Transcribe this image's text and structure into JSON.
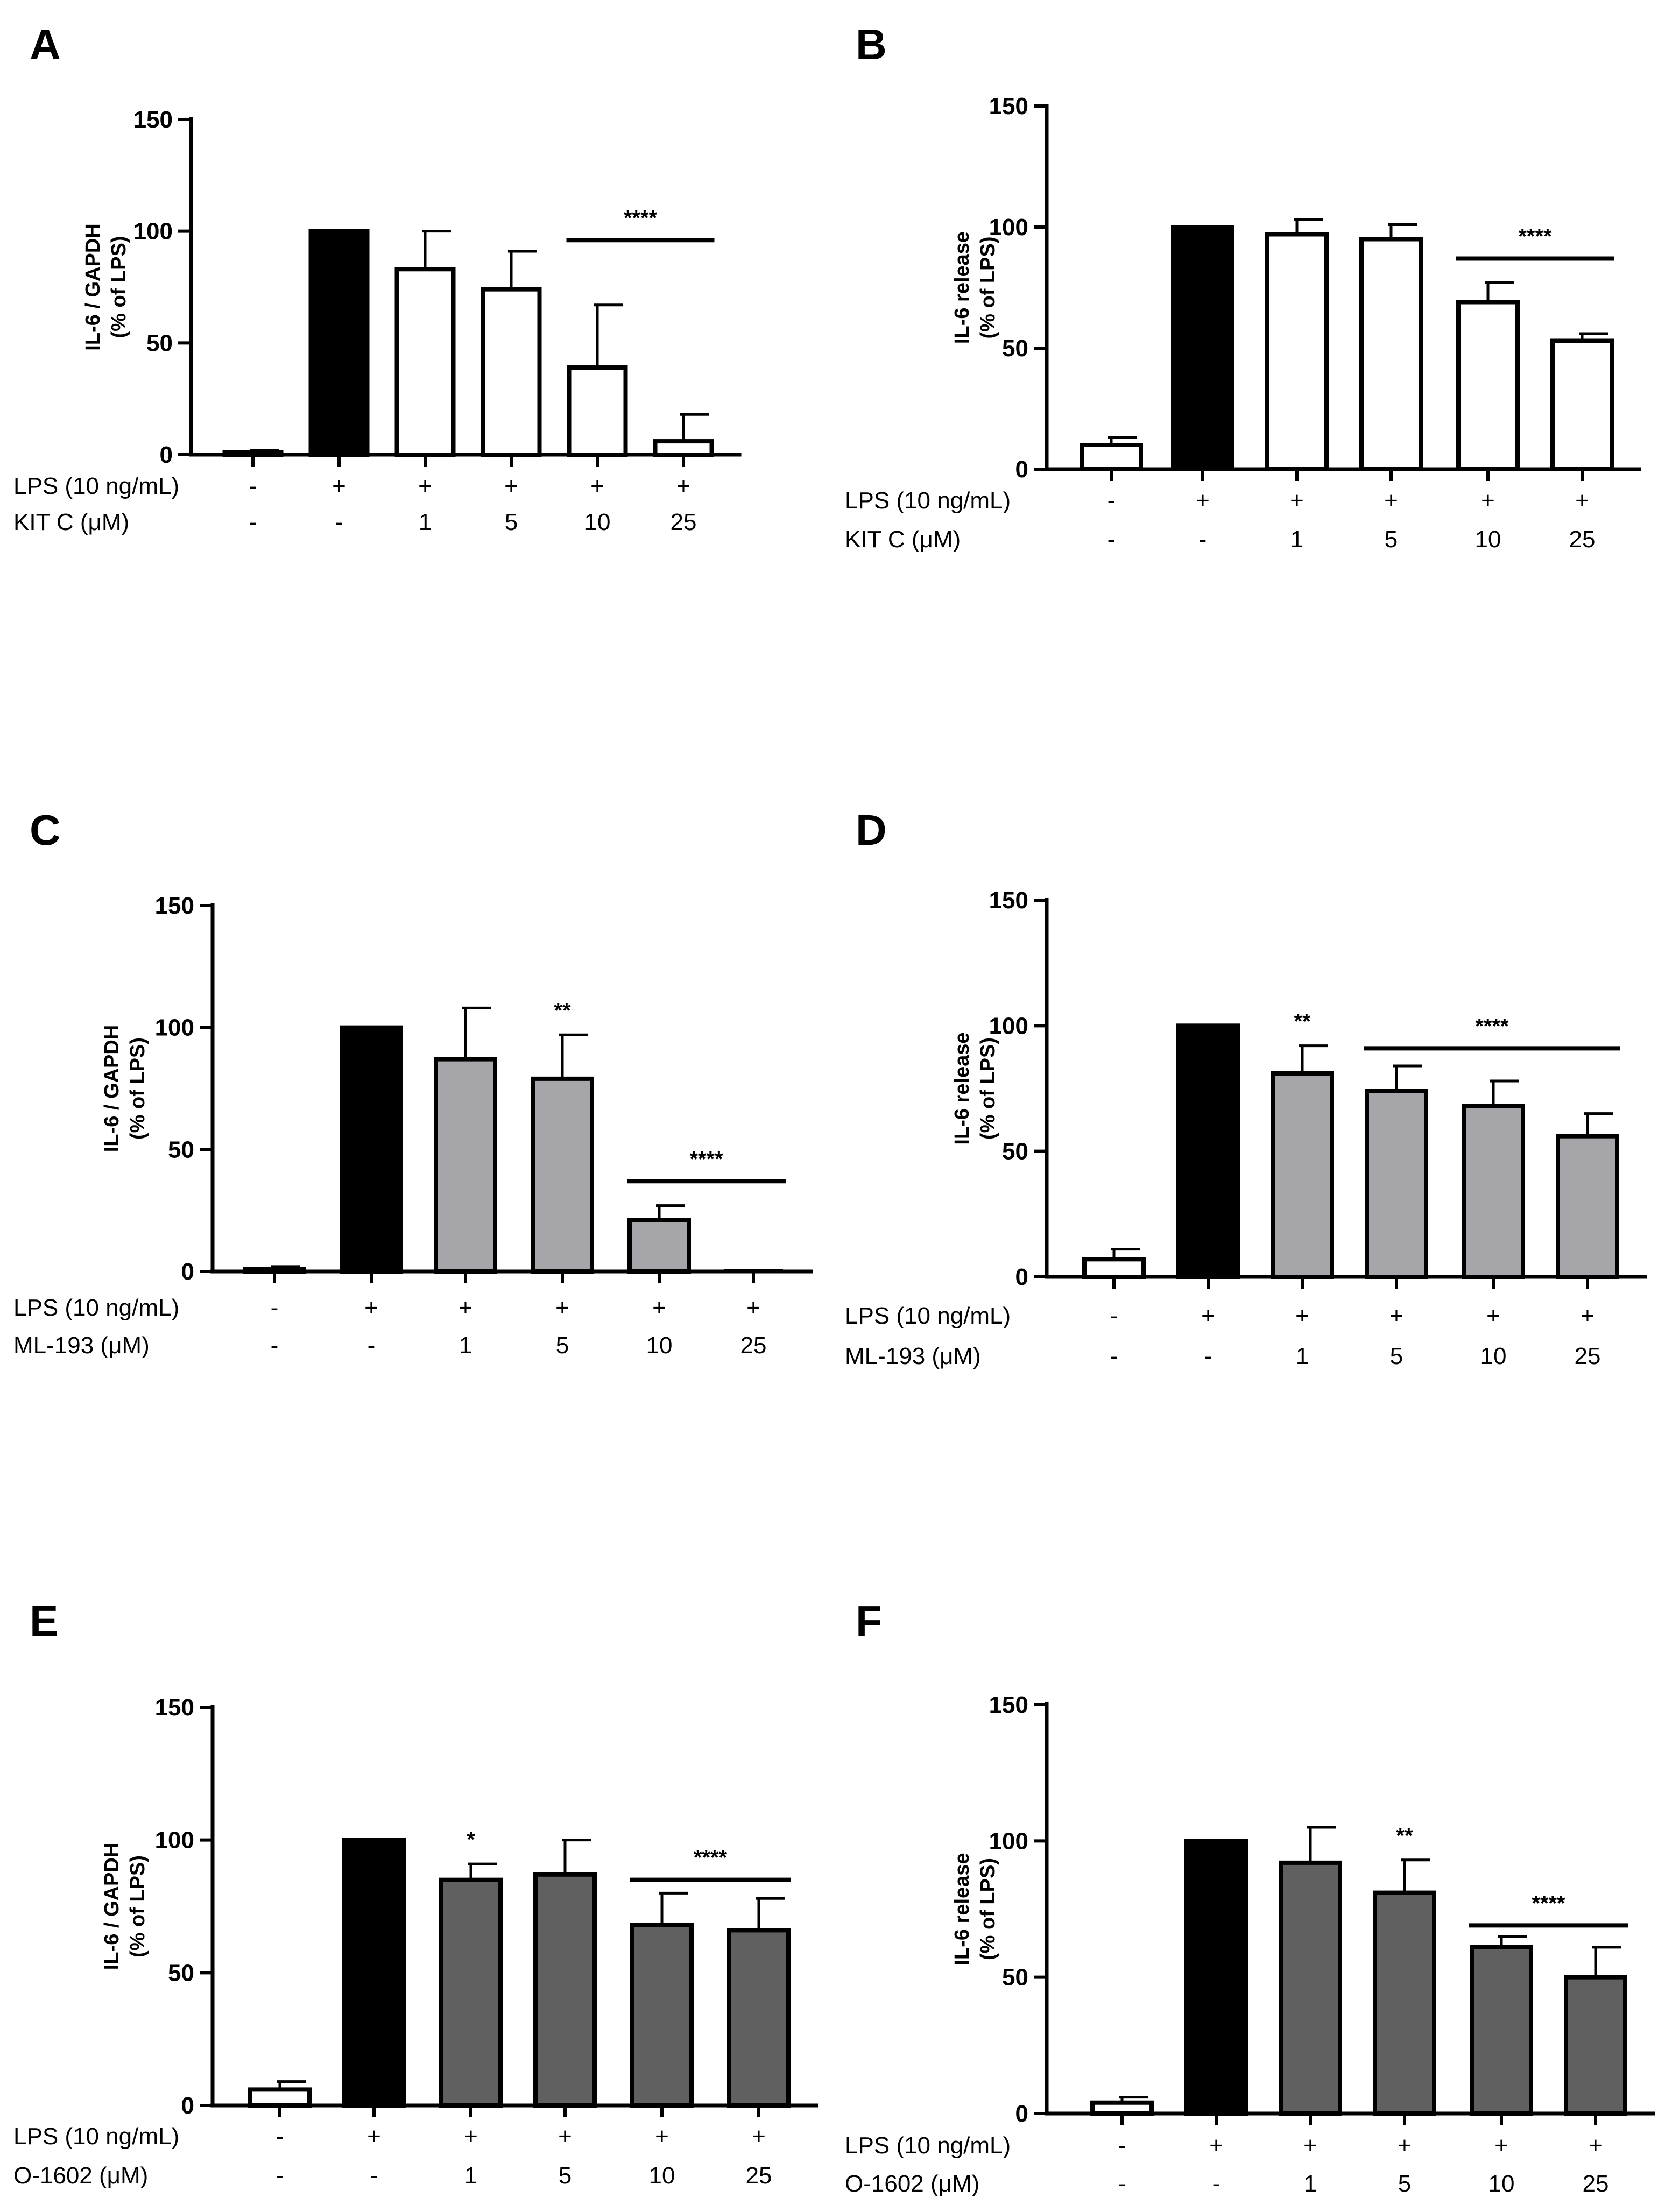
{
  "figure": {
    "background": "#ffffff"
  },
  "colors": {
    "white": "#ffffff",
    "black": "#000000",
    "light_gray": "#a5a5aa",
    "dark_gray": "#606060"
  },
  "chart_data": [
    {
      "id": "A",
      "panel": "A",
      "type": "bar",
      "ylabel_lines": [
        "IL-6 / GAPDH",
        "(% of LPS)"
      ],
      "ylim": [
        0,
        150
      ],
      "yticks": [
        0,
        50,
        100,
        150
      ],
      "values": [
        1,
        100,
        83,
        74,
        39,
        6
      ],
      "errors": [
        1,
        0,
        17,
        17,
        28,
        12
      ],
      "fills": [
        "white",
        "black",
        "white",
        "white",
        "white",
        "white"
      ],
      "row_labels": [
        "LPS (10 ng/mL)",
        "KIT C (μM)"
      ],
      "lps": [
        "-",
        "+",
        "+",
        "+",
        "+",
        "+"
      ],
      "dose": [
        "-",
        "-",
        "1",
        "5",
        "10",
        "25"
      ],
      "sig_markers": [],
      "sig_lines": [
        {
          "from": 4,
          "to": 5,
          "y": 96,
          "label": "****"
        }
      ]
    },
    {
      "id": "B",
      "panel": "B",
      "type": "bar",
      "ylabel_lines": [
        "IL-6 release",
        "(% of LPS)"
      ],
      "ylim": [
        0,
        150
      ],
      "yticks": [
        0,
        50,
        100,
        150
      ],
      "values": [
        10,
        100,
        97,
        95,
        69,
        53
      ],
      "errors": [
        3,
        0,
        6,
        6,
        8,
        3
      ],
      "fills": [
        "white",
        "black",
        "white",
        "white",
        "white",
        "white"
      ],
      "row_labels": [
        "LPS (10 ng/mL)",
        "KIT C (μM)"
      ],
      "lps": [
        "-",
        "+",
        "+",
        "+",
        "+",
        "+"
      ],
      "dose": [
        "-",
        "-",
        "1",
        "5",
        "10",
        "25"
      ],
      "sig_markers": [],
      "sig_lines": [
        {
          "from": 4,
          "to": 5,
          "y": 87,
          "label": "****"
        }
      ]
    },
    {
      "id": "C",
      "panel": "C",
      "type": "bar",
      "ylabel_lines": [
        "IL-6 / GAPDH",
        "(% of LPS)"
      ],
      "ylim": [
        0,
        150
      ],
      "yticks": [
        0,
        50,
        100,
        150
      ],
      "values": [
        1,
        100,
        87,
        79,
        21,
        0
      ],
      "errors": [
        1,
        0,
        21,
        18,
        6,
        0
      ],
      "fills": [
        "white",
        "black",
        "light_gray",
        "light_gray",
        "light_gray",
        "light_gray"
      ],
      "row_labels": [
        "LPS (10 ng/mL)",
        "ML-193 (μM)"
      ],
      "lps": [
        "-",
        "+",
        "+",
        "+",
        "+",
        "+"
      ],
      "dose": [
        "-",
        "-",
        "1",
        "5",
        "10",
        "25"
      ],
      "sig_markers": [
        {
          "index": 3,
          "label": "**"
        }
      ],
      "sig_lines": [
        {
          "from": 4,
          "to": 5,
          "y": 37,
          "label": "****"
        }
      ]
    },
    {
      "id": "D",
      "panel": "D",
      "type": "bar",
      "ylabel_lines": [
        "IL-6 release",
        "(% of LPS)"
      ],
      "ylim": [
        0,
        150
      ],
      "yticks": [
        0,
        50,
        100,
        150
      ],
      "values": [
        7,
        100,
        81,
        74,
        68,
        56
      ],
      "errors": [
        4,
        0,
        11,
        10,
        10,
        9
      ],
      "fills": [
        "white",
        "black",
        "light_gray",
        "light_gray",
        "light_gray",
        "light_gray"
      ],
      "row_labels": [
        "LPS (10 ng/mL)",
        "ML-193 (μM)"
      ],
      "lps": [
        "-",
        "+",
        "+",
        "+",
        "+",
        "+"
      ],
      "dose": [
        "-",
        "-",
        "1",
        "5",
        "10",
        "25"
      ],
      "sig_markers": [
        {
          "index": 2,
          "label": "**"
        }
      ],
      "sig_lines": [
        {
          "from": 3,
          "to": 5,
          "y": 91,
          "label": "****"
        }
      ]
    },
    {
      "id": "E",
      "panel": "E",
      "type": "bar",
      "ylabel_lines": [
        "IL-6 / GAPDH",
        "(% of LPS)"
      ],
      "ylim": [
        0,
        150
      ],
      "yticks": [
        0,
        50,
        100,
        150
      ],
      "values": [
        6,
        100,
        85,
        87,
        68,
        66
      ],
      "errors": [
        3,
        0,
        6,
        13,
        12,
        12
      ],
      "fills": [
        "white",
        "black",
        "dark_gray",
        "dark_gray",
        "dark_gray",
        "dark_gray"
      ],
      "row_labels": [
        "LPS (10 ng/mL)",
        "O-1602 (μM)"
      ],
      "lps": [
        "-",
        "+",
        "+",
        "+",
        "+",
        "+"
      ],
      "dose": [
        "-",
        "-",
        "1",
        "5",
        "10",
        "25"
      ],
      "sig_markers": [
        {
          "index": 2,
          "label": "*"
        }
      ],
      "sig_lines": [
        {
          "from": 4,
          "to": 5,
          "y": 85,
          "label": "****"
        }
      ]
    },
    {
      "id": "F",
      "panel": "F",
      "type": "bar",
      "ylabel_lines": [
        "IL-6 release",
        "(% of LPS)"
      ],
      "ylim": [
        0,
        150
      ],
      "yticks": [
        0,
        50,
        100,
        150
      ],
      "values": [
        4,
        100,
        92,
        81,
        61,
        50
      ],
      "errors": [
        2,
        0,
        13,
        12,
        4,
        11
      ],
      "fills": [
        "white",
        "black",
        "dark_gray",
        "dark_gray",
        "dark_gray",
        "dark_gray"
      ],
      "row_labels": [
        "LPS (10 ng/mL)",
        "O-1602 (μM)"
      ],
      "lps": [
        "-",
        "+",
        "+",
        "+",
        "+",
        "+"
      ],
      "dose": [
        "-",
        "-",
        "1",
        "5",
        "10",
        "25"
      ],
      "sig_markers": [
        {
          "index": 3,
          "label": "**"
        }
      ],
      "sig_lines": [
        {
          "from": 4,
          "to": 5,
          "y": 69,
          "label": "****"
        }
      ]
    }
  ]
}
